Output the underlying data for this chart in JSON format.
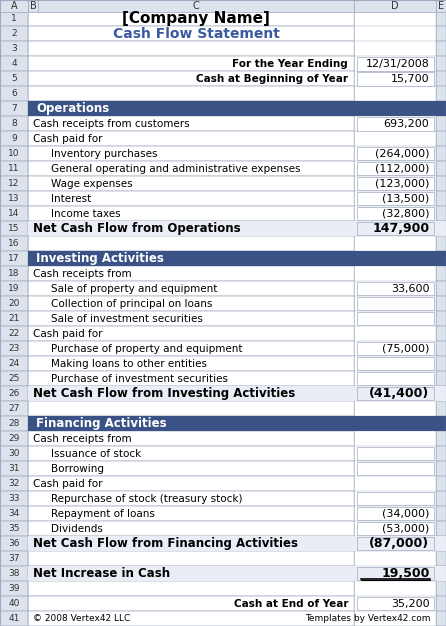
{
  "title": "[Company Name]",
  "subtitle": "Cash Flow Statement",
  "title_color": "#000000",
  "subtitle_color": "#3a5aa0",
  "section_bg": "#3a5285",
  "section_text_color": "#ffffff",
  "net_row_bg": "#eaedf5",
  "col_header_bg": "#dde3ed",
  "col_header_color": "#333333",
  "grid_color": "#a0aabf",
  "value_box_bg": "#ffffff",
  "value_box_border": "#a0aabf",
  "col_labels": [
    "A",
    "B",
    "C",
    "D",
    "E"
  ],
  "rows": [
    {
      "row": 1,
      "type": "title",
      "text": "[Company Name]"
    },
    {
      "row": 2,
      "type": "subtitle",
      "text": "Cash Flow Statement"
    },
    {
      "row": 3,
      "type": "empty"
    },
    {
      "row": 4,
      "type": "header_info",
      "label": "For the Year Ending",
      "value": "12/31/2008"
    },
    {
      "row": 5,
      "type": "header_info",
      "label": "Cash at Beginning of Year",
      "value": "15,700"
    },
    {
      "row": 6,
      "type": "empty"
    },
    {
      "row": 7,
      "type": "section_header",
      "text": "Operations"
    },
    {
      "row": 8,
      "type": "data",
      "indent": 0,
      "label": "Cash receipts from customers",
      "value": "693,200"
    },
    {
      "row": 9,
      "type": "data",
      "indent": 0,
      "label": "Cash paid for",
      "value": ""
    },
    {
      "row": 10,
      "type": "data",
      "indent": 1,
      "label": "Inventory purchases",
      "value": "(264,000)"
    },
    {
      "row": 11,
      "type": "data",
      "indent": 1,
      "label": "General operating and administrative expenses",
      "value": "(112,000)"
    },
    {
      "row": 12,
      "type": "data",
      "indent": 1,
      "label": "Wage expenses",
      "value": "(123,000)"
    },
    {
      "row": 13,
      "type": "data",
      "indent": 1,
      "label": "Interest",
      "value": "(13,500)"
    },
    {
      "row": 14,
      "type": "data",
      "indent": 1,
      "label": "Income taxes",
      "value": "(32,800)"
    },
    {
      "row": 15,
      "type": "net_row",
      "label": "Net Cash Flow from Operations",
      "value": "147,900"
    },
    {
      "row": 16,
      "type": "empty"
    },
    {
      "row": 17,
      "type": "section_header",
      "text": "Investing Activities"
    },
    {
      "row": 18,
      "type": "data",
      "indent": 0,
      "label": "Cash receipts from",
      "value": ""
    },
    {
      "row": 19,
      "type": "data",
      "indent": 1,
      "label": "Sale of property and equipment",
      "value": "33,600"
    },
    {
      "row": 20,
      "type": "data",
      "indent": 1,
      "label": "Collection of principal on loans",
      "value": ""
    },
    {
      "row": 21,
      "type": "data",
      "indent": 1,
      "label": "Sale of investment securities",
      "value": ""
    },
    {
      "row": 22,
      "type": "data",
      "indent": 0,
      "label": "Cash paid for",
      "value": ""
    },
    {
      "row": 23,
      "type": "data",
      "indent": 1,
      "label": "Purchase of property and equipment",
      "value": "(75,000)"
    },
    {
      "row": 24,
      "type": "data",
      "indent": 1,
      "label": "Making loans to other entities",
      "value": ""
    },
    {
      "row": 25,
      "type": "data",
      "indent": 1,
      "label": "Purchase of investment securities",
      "value": ""
    },
    {
      "row": 26,
      "type": "net_row",
      "label": "Net Cash Flow from Investing Activities",
      "value": "(41,400)"
    },
    {
      "row": 27,
      "type": "empty"
    },
    {
      "row": 28,
      "type": "section_header",
      "text": "Financing Activities"
    },
    {
      "row": 29,
      "type": "data",
      "indent": 0,
      "label": "Cash receipts from",
      "value": ""
    },
    {
      "row": 30,
      "type": "data",
      "indent": 1,
      "label": "Issuance of stock",
      "value": ""
    },
    {
      "row": 31,
      "type": "data",
      "indent": 1,
      "label": "Borrowing",
      "value": ""
    },
    {
      "row": 32,
      "type": "data",
      "indent": 0,
      "label": "Cash paid for",
      "value": ""
    },
    {
      "row": 33,
      "type": "data",
      "indent": 1,
      "label": "Repurchase of stock (treasury stock)",
      "value": ""
    },
    {
      "row": 34,
      "type": "data",
      "indent": 1,
      "label": "Repayment of loans",
      "value": "(34,000)"
    },
    {
      "row": 35,
      "type": "data",
      "indent": 1,
      "label": "Dividends",
      "value": "(53,000)"
    },
    {
      "row": 36,
      "type": "net_row",
      "label": "Net Cash Flow from Financing Activities",
      "value": "(87,000)"
    },
    {
      "row": 37,
      "type": "empty"
    },
    {
      "row": 38,
      "type": "net_increase",
      "label": "Net Increase in Cash",
      "value": "19,500"
    },
    {
      "row": 39,
      "type": "empty"
    },
    {
      "row": 40,
      "type": "footer_info",
      "label": "Cash at End of Year",
      "value": "35,200"
    },
    {
      "row": 41,
      "type": "footer_copy",
      "left": "© 2008 Vertex42 LLC",
      "right": "Templates by Vertex42.com"
    }
  ]
}
